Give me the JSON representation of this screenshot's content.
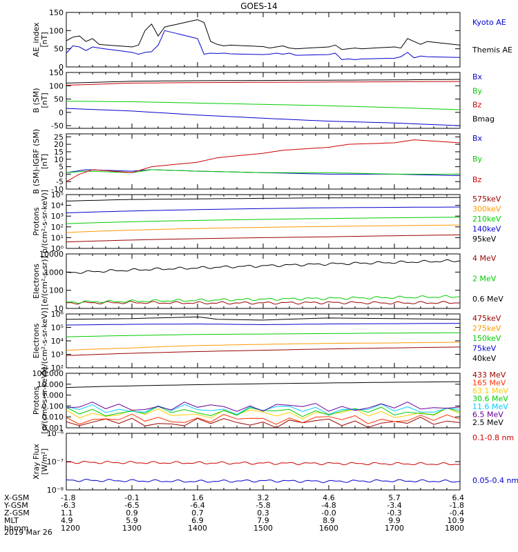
{
  "title": "GOES-14",
  "date": "2019 Mar 26",
  "chart_data": [
    {
      "type": "line",
      "ylabel": [
        "AE_index",
        "[nT]"
      ],
      "ylim": [
        0,
        150
      ],
      "yscale": "linear",
      "yticks": [
        0,
        50,
        100,
        150
      ],
      "yticklabels": [
        "0",
        "50",
        "100",
        "150"
      ],
      "series": [
        {
          "name": "Kyoto AE",
          "color": "#0000cc",
          "x": [
            1200,
            1210,
            1220,
            1230,
            1240,
            1250,
            1300,
            1310,
            1320,
            1330,
            1340,
            1350,
            1400,
            1410,
            1420,
            1430,
            1440,
            1450,
            1500,
            1510,
            1520,
            1530,
            1540,
            1550,
            1600,
            1610,
            1620,
            1630,
            1640,
            1650,
            1700,
            1710,
            1720,
            1730,
            1740,
            1750,
            1800
          ],
          "y": [
            38,
            58,
            55,
            45,
            55,
            52,
            40,
            35,
            40,
            42,
            60,
            100,
            78,
            35,
            38,
            37,
            38,
            36,
            34,
            35,
            38,
            35,
            38,
            32,
            34,
            38,
            20,
            22,
            20,
            22,
            24,
            28,
            40,
            25,
            30,
            28,
            26
          ]
        },
        {
          "name": "Themis AE",
          "color": "#000000",
          "x": [
            1200,
            1210,
            1220,
            1230,
            1240,
            1250,
            1300,
            1310,
            1320,
            1330,
            1340,
            1350,
            1400,
            1410,
            1420,
            1430,
            1440,
            1450,
            1500,
            1510,
            1520,
            1530,
            1540,
            1550,
            1600,
            1610,
            1620,
            1630,
            1640,
            1650,
            1700,
            1710,
            1720,
            1730,
            1740,
            1750,
            1800
          ],
          "y": [
            72,
            82,
            85,
            70,
            78,
            62,
            55,
            60,
            100,
            118,
            85,
            110,
            130,
            122,
            70,
            62,
            58,
            60,
            56,
            52,
            55,
            58,
            52,
            50,
            55,
            60,
            48,
            50,
            52,
            50,
            55,
            52,
            78,
            70,
            62,
            70,
            60
          ]
        }
      ]
    },
    {
      "type": "line",
      "ylabel": [
        "B (SM)",
        "[nT]"
      ],
      "ylim": [
        -60,
        150
      ],
      "yscale": "linear",
      "yticks": [
        -50,
        0,
        50,
        100,
        150
      ],
      "yticklabels": [
        "-50",
        "0",
        "50",
        "100",
        "150"
      ],
      "series": [
        {
          "name": "Bx",
          "color": "#0000cc",
          "x": [
            1200,
            1300,
            1400,
            1500,
            1600,
            1700,
            1800
          ],
          "y": [
            15,
            5,
            -10,
            -22,
            -33,
            -40,
            -50
          ]
        },
        {
          "name": "By",
          "color": "#00cc00",
          "x": [
            1200,
            1300,
            1400,
            1500,
            1600,
            1700,
            1800
          ],
          "y": [
            42,
            40,
            35,
            30,
            25,
            18,
            10
          ]
        },
        {
          "name": "Bz",
          "color": "#cc0000",
          "x": [
            1200,
            1300,
            1400,
            1500,
            1600,
            1700,
            1800
          ],
          "y": [
            102,
            110,
            112,
            113,
            114,
            115,
            116
          ]
        },
        {
          "name": "Bmag",
          "color": "#000000",
          "x": [
            1200,
            1300,
            1400,
            1500,
            1600,
            1700,
            1800
          ],
          "y": [
            110,
            117,
            119,
            120,
            121,
            122,
            124
          ]
        }
      ]
    },
    {
      "type": "line",
      "ylabel": [
        "B (SM)-IGRF (SM)",
        "[nT]"
      ],
      "ylim": [
        -10,
        27
      ],
      "yscale": "linear",
      "yticks": [
        -10,
        -5,
        0,
        5,
        10,
        15,
        20,
        25
      ],
      "yticklabels": [
        "-10",
        "-5",
        "0",
        "5",
        "10",
        "15",
        "20",
        "25"
      ],
      "series": [
        {
          "name": "Bx",
          "color": "#0000cc",
          "x": [
            1200,
            1230,
            1300,
            1330,
            1400,
            1500,
            1600,
            1700,
            1800
          ],
          "y": [
            1,
            3,
            2,
            3,
            2,
            1,
            0,
            0,
            -1
          ]
        },
        {
          "name": "By",
          "color": "#00cc00",
          "x": [
            1200,
            1230,
            1300,
            1330,
            1400,
            1500,
            1600,
            1700,
            1800
          ],
          "y": [
            1,
            2,
            1,
            3,
            2,
            1,
            1,
            0,
            0
          ]
        },
        {
          "name": "Bz",
          "color": "#cc0000",
          "x": [
            1200,
            1220,
            1240,
            1300,
            1330,
            1400,
            1430,
            1500,
            1530,
            1600,
            1630,
            1700,
            1730,
            1800
          ],
          "y": [
            -5,
            0,
            3,
            1,
            5,
            8,
            11,
            14,
            16,
            18,
            20,
            21,
            23,
            21
          ]
        }
      ]
    },
    {
      "type": "line",
      "ylabel": [
        "Protons",
        "p/(cm²-s-sr-keV)]"
      ],
      "ylim": [
        1,
        100000
      ],
      "yscale": "log",
      "yticks": [
        1,
        10,
        100,
        1000,
        10000,
        100000
      ],
      "yticklabels": [
        "10⁰",
        "10¹",
        "10²",
        "10³",
        "10⁴",
        "10⁵"
      ],
      "series": [
        {
          "name": "575keV",
          "color": "#990000",
          "x": [
            1200,
            1300,
            1400,
            1500,
            1600,
            1700,
            1800
          ],
          "y": [
            4,
            6,
            8,
            10,
            12,
            15,
            18
          ]
        },
        {
          "name": "300keV",
          "color": "#ff9900",
          "x": [
            1200,
            1300,
            1400,
            1500,
            1600,
            1700,
            1800
          ],
          "y": [
            30,
            50,
            70,
            90,
            110,
            130,
            150
          ]
        },
        {
          "name": "210keV",
          "color": "#00cc00",
          "x": [
            1200,
            1300,
            1400,
            1500,
            1600,
            1700,
            1800
          ],
          "y": [
            200,
            300,
            400,
            500,
            600,
            700,
            800
          ]
        },
        {
          "name": "140keV",
          "color": "#0000cc",
          "x": [
            1200,
            1300,
            1400,
            1500,
            1600,
            1700,
            1800
          ],
          "y": [
            2000,
            3000,
            4000,
            5000,
            6000,
            6500,
            7000
          ]
        },
        {
          "name": "95keV",
          "color": "#000000",
          "x": [
            1200,
            1300,
            1400,
            1500,
            1600,
            1700,
            1800
          ],
          "y": [
            25000,
            35000,
            40000,
            45000,
            50000,
            50000,
            55000
          ]
        }
      ]
    },
    {
      "type": "line",
      "ylabel": [
        "Electrons",
        "[e/(cm²-s-sr)]"
      ],
      "ylim": [
        10,
        10000
      ],
      "yscale": "log",
      "yticks": [
        10,
        100,
        1000,
        10000
      ],
      "yticklabels": [
        "10",
        "100",
        "1000",
        "10000"
      ],
      "series": [
        {
          "name": "4 MeV",
          "color": "#990000",
          "x": [
            1200,
            1300,
            1400,
            1500,
            1600,
            1700,
            1800
          ],
          "y": [
            20,
            21,
            20,
            20,
            21,
            20,
            21
          ]
        },
        {
          "name": "2 MeV",
          "color": "#00cc00",
          "x": [
            1200,
            1300,
            1400,
            1500,
            1600,
            1700,
            1800
          ],
          "y": [
            22,
            25,
            28,
            32,
            36,
            40,
            45
          ]
        },
        {
          "name": "0.6 MeV",
          "color": "#000000",
          "x": [
            1200,
            1300,
            1400,
            1500,
            1600,
            1700,
            1800
          ],
          "y": [
            900,
            1300,
            1700,
            2200,
            2800,
            3400,
            4200
          ]
        }
      ]
    },
    {
      "type": "line",
      "ylabel": [
        "Electrons",
        "[e/(cm²-s-sr-keV)]"
      ],
      "ylim": [
        100,
        1000000
      ],
      "yscale": "log",
      "yticks": [
        100,
        1000,
        10000,
        100000,
        1000000
      ],
      "yticklabels": [
        "10²",
        "10³",
        "10⁴",
        "10⁵",
        "10⁶"
      ],
      "series": [
        {
          "name": "475keV",
          "color": "#990000",
          "x": [
            1200,
            1300,
            1400,
            1500,
            1600,
            1700,
            1800
          ],
          "y": [
            800,
            1200,
            1600,
            2000,
            2500,
            3000,
            3500
          ]
        },
        {
          "name": "275keV",
          "color": "#ff9900",
          "x": [
            1200,
            1300,
            1400,
            1500,
            1600,
            1700,
            1800
          ],
          "y": [
            2000,
            3000,
            4500,
            5500,
            6500,
            7000,
            8000
          ]
        },
        {
          "name": "150keV",
          "color": "#00cc00",
          "x": [
            1200,
            1300,
            1400,
            1500,
            1600,
            1700,
            1800
          ],
          "y": [
            20000,
            25000,
            30000,
            32000,
            35000,
            38000,
            40000
          ]
        },
        {
          "name": "75keV",
          "color": "#0000cc",
          "x": [
            1200,
            1300,
            1400,
            1500,
            1600,
            1700,
            1800
          ],
          "y": [
            150000,
            170000,
            180000,
            160000,
            180000,
            190000,
            200000
          ]
        },
        {
          "name": "40keV",
          "color": "#000000",
          "x": [
            1200,
            1300,
            1400,
            1430,
            1500,
            1600,
            1700,
            1800
          ],
          "y": [
            400000,
            450000,
            600000,
            400000,
            350000,
            500000,
            450000,
            400000
          ]
        }
      ]
    },
    {
      "type": "line",
      "ylabel": [
        "Protons",
        "[p/(cm²-s-sr-keV)]"
      ],
      "ylim": [
        0.001,
        100
      ],
      "yscale": "log",
      "yticks": [
        0.001,
        0.01,
        0.1,
        1,
        10,
        100
      ],
      "yticklabels": [
        "0.001",
        "0.010",
        "0.100",
        "1.000",
        "10.000",
        "100.000"
      ],
      "series": [
        {
          "name": "433 MeV",
          "color": "#990000",
          "x": [
            1200,
            1800
          ],
          "y": [
            0.003,
            0.003
          ]
        },
        {
          "name": "165 MeV",
          "color": "#ff3300",
          "x": [
            1200,
            1800
          ],
          "y": [
            0.006,
            0.006
          ]
        },
        {
          "name": "63.1 MeV",
          "color": "#ffcc00",
          "x": [
            1200,
            1800
          ],
          "y": [
            0.02,
            0.02
          ]
        },
        {
          "name": "30.6 MeV",
          "color": "#00cc00",
          "x": [
            1200,
            1800
          ],
          "y": [
            0.03,
            0.03
          ]
        },
        {
          "name": "11.6 MeV",
          "color": "#00ccff",
          "x": [
            1200,
            1800
          ],
          "y": [
            0.05,
            0.05
          ]
        },
        {
          "name": "6.5 MeV",
          "color": "#660099",
          "x": [
            1200,
            1800
          ],
          "y": [
            0.08,
            0.08
          ]
        },
        {
          "name": "2.5 MeV",
          "color": "#000000",
          "x": [
            1200,
            1300,
            1400,
            1500,
            1600,
            1700,
            1800
          ],
          "y": [
            5,
            7,
            9,
            11,
            13,
            15,
            17
          ]
        }
      ]
    },
    {
      "type": "line",
      "ylabel": [
        "Xray Flux",
        "[W/m²]"
      ],
      "ylim": [
        1e-08,
        1e-06
      ],
      "yscale": "log",
      "yticks": [
        1e-08,
        1e-07,
        1e-06
      ],
      "yticklabels": [
        "10⁻⁸",
        "10⁻⁷",
        "10⁻⁶"
      ],
      "series": [
        {
          "name": "0.1-0.8 nm",
          "color": "#cc0000",
          "x": [
            1200,
            1300,
            1400,
            1500,
            1600,
            1700,
            1800
          ],
          "y": [
            9.5e-08,
            9.2e-08,
            9e-08,
            8.8e-08,
            8.6e-08,
            8.4e-08,
            8.2e-08
          ]
        },
        {
          "name": "0.05-0.4 nm",
          "color": "#0000cc",
          "x": [
            1200,
            1300,
            1400,
            1500,
            1600,
            1700,
            1800
          ],
          "y": [
            2.2e-08,
            2.1e-08,
            2e-08,
            2.1e-08,
            2e-08,
            2.1e-08,
            2e-08
          ]
        }
      ]
    }
  ],
  "axis_table": {
    "ticks": [
      1200,
      1300,
      1400,
      1500,
      1600,
      1700,
      1800
    ],
    "rows": [
      {
        "label": "X-GSM",
        "values": [
          "-1.8",
          "-0.1",
          "1.6",
          "3.2",
          "4.6",
          "5.7",
          "6.4"
        ]
      },
      {
        "label": "Y-GSM",
        "values": [
          "-6.3",
          "-6.5",
          "-6.4",
          "-5.8",
          "-4.8",
          "-3.4",
          "-1.8"
        ]
      },
      {
        "label": "Z-GSM",
        "values": [
          "1.1",
          "0.9",
          "0.7",
          "0.3",
          "-0.0",
          "-0.3",
          "-0.4"
        ]
      },
      {
        "label": "MLT",
        "values": [
          "4.9",
          "5.9",
          "6.9",
          "7.9",
          "8.9",
          "9.9",
          "10.9"
        ]
      },
      {
        "label": "hhmm",
        "values": [
          "1200",
          "1300",
          "1400",
          "1500",
          "1600",
          "1700",
          "1800"
        ]
      }
    ]
  }
}
